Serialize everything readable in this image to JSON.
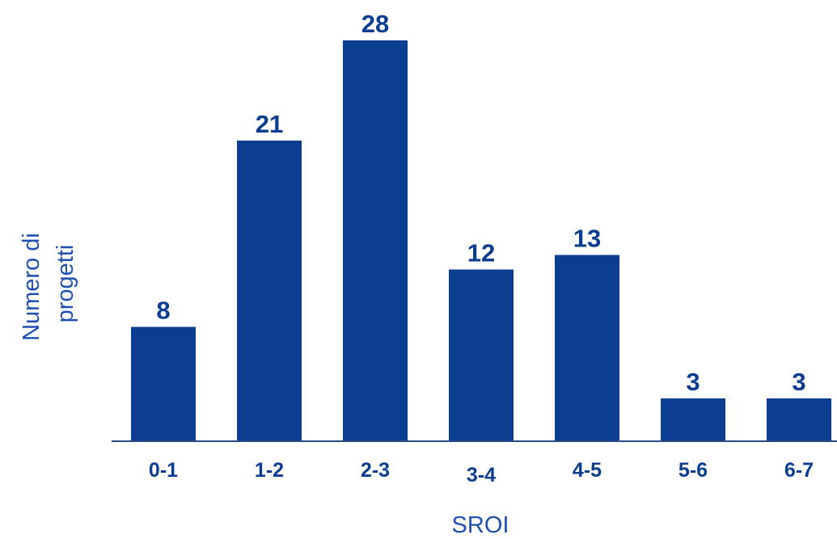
{
  "chart_data": {
    "type": "bar",
    "categories": [
      "0-1",
      "1-2",
      "2-3",
      "3-4",
      "4-5",
      "5-6",
      "6-7"
    ],
    "values": [
      8,
      21,
      28,
      12,
      13,
      3,
      3
    ],
    "title": "",
    "xlabel": "SROI",
    "ylabel_lines": [
      "Numero di",
      "progetti"
    ],
    "ylim": [
      0,
      28
    ],
    "grid": false,
    "legend": "none"
  },
  "colors": {
    "bar": "#0b3d91",
    "axis": "#2b4a86",
    "label": "#0b3d91",
    "axis_title": "#1f4fb3"
  }
}
